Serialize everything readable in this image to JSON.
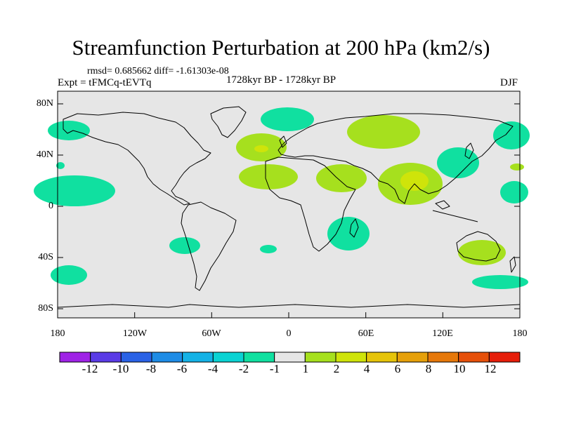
{
  "title": "Streamfunction Perturbation at 200 hPa (km2/s)",
  "stats": "rmsd= 0.685662 diff= -1.61303e-08",
  "experiment": "Expt = tFMCq-tEVTq",
  "period": "1728kyr BP - 1728kyr BP",
  "season": "DJF",
  "lat_ticks": [
    "80N",
    "40N",
    "0",
    "40S",
    "80S"
  ],
  "lon_ticks": [
    "180",
    "120W",
    "60W",
    "0",
    "60E",
    "120E",
    "180"
  ],
  "colorbar": {
    "labels": [
      "-12",
      "-10",
      "-8",
      "-6",
      "-4",
      "-2",
      "-1",
      "1",
      "2",
      "4",
      "6",
      "8",
      "10",
      "12"
    ],
    "colors": [
      "#9f22e6",
      "#5a3be6",
      "#2a62e6",
      "#1e8ce6",
      "#14b2e6",
      "#0ad3d3",
      "#10e0a0",
      "#e6e6e6",
      "#a6e01e",
      "#cfe40a",
      "#e6c40a",
      "#e6a00a",
      "#e6780a",
      "#e6500a",
      "#e61e0a"
    ]
  },
  "colors": {
    "background": "#e6e6e6",
    "positive_1": "#a6e01e",
    "positive_2": "#cfe40a",
    "negative_1": "#10e0a0",
    "coast": "#000000"
  }
}
